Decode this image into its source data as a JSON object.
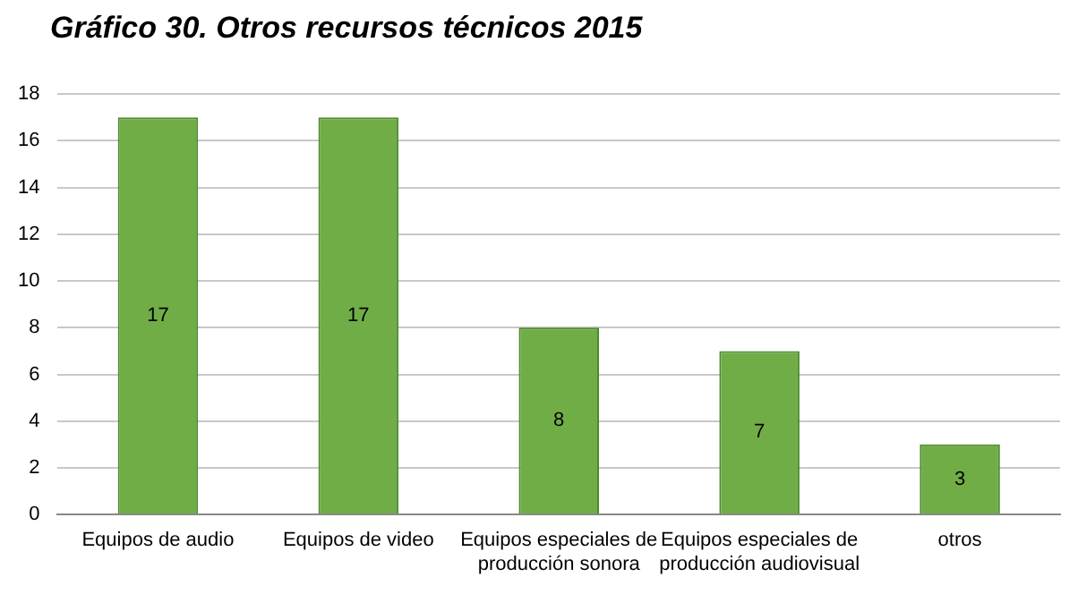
{
  "chart_data": {
    "type": "bar",
    "title": "Gráfico 30. Otros recursos técnicos 2015",
    "categories": [
      "Equipos de audio",
      "Equipos de video",
      "Equipos especiales de producción sonora",
      "Equipos especiales de producción audiovisual",
      "otros"
    ],
    "values": [
      17,
      17,
      8,
      7,
      3
    ],
    "color": "#70ad47",
    "ylim": [
      0,
      18
    ],
    "yticks": [
      0,
      2,
      4,
      6,
      8,
      10,
      12,
      14,
      16,
      18
    ],
    "grid": "y",
    "data_labels": true,
    "legend": false
  }
}
